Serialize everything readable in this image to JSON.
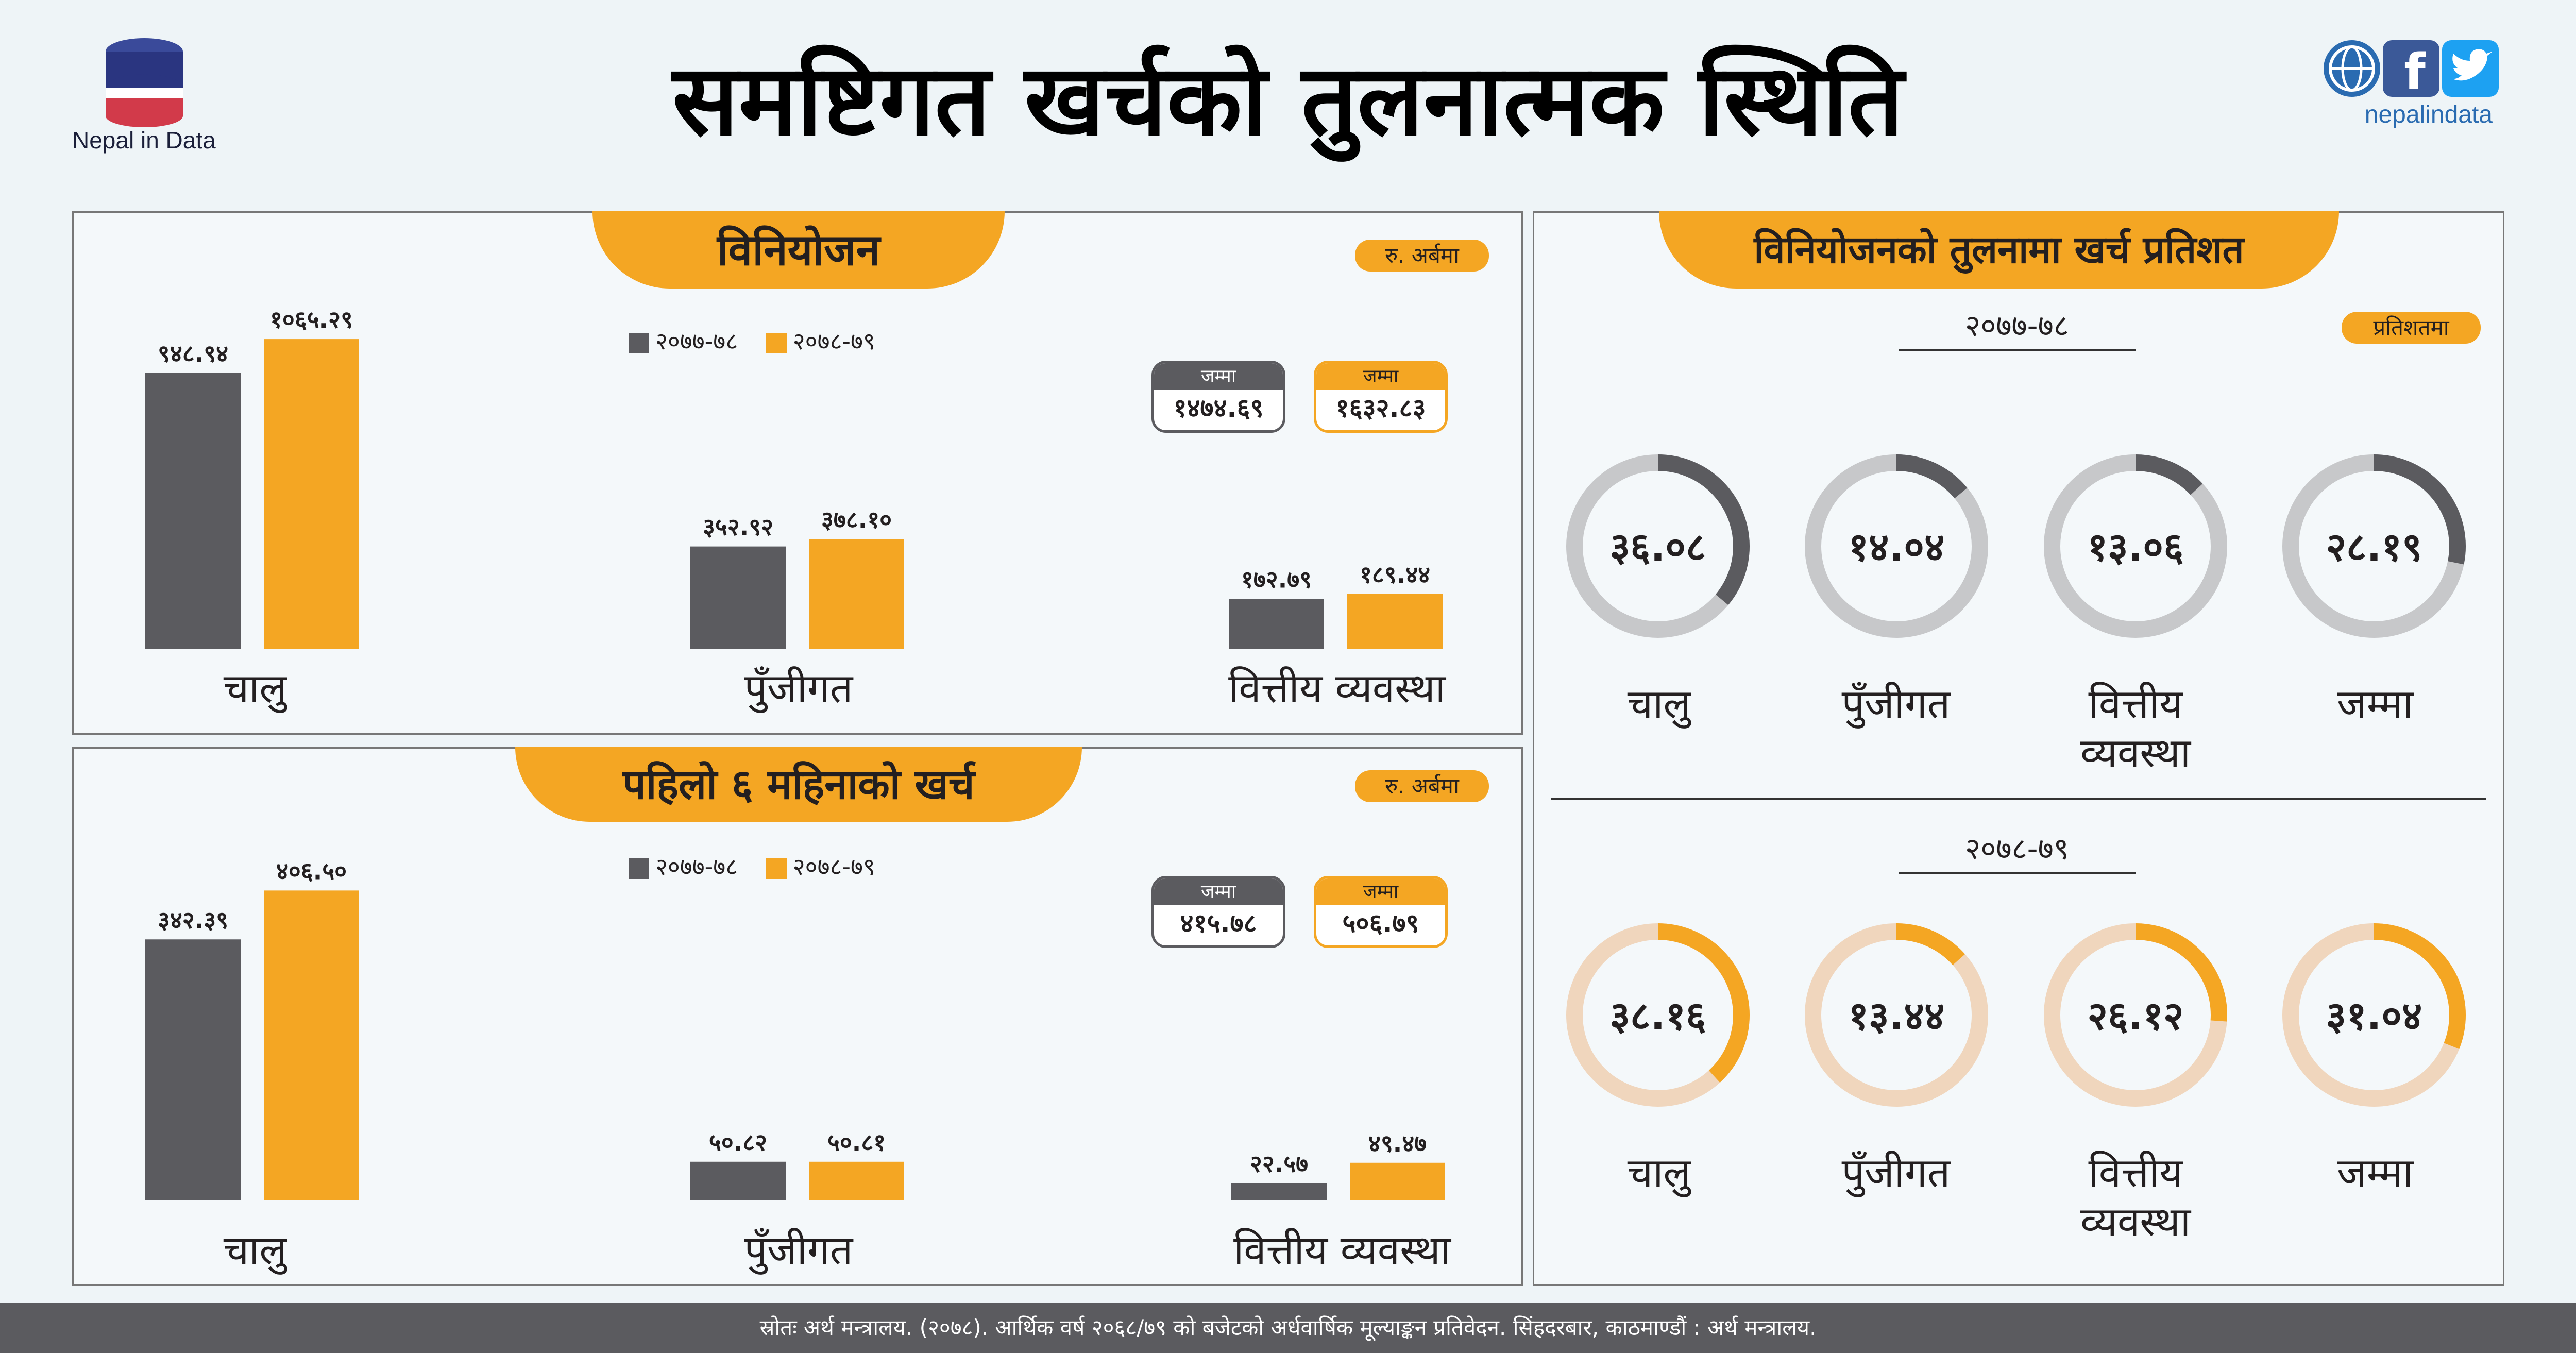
{
  "header": {
    "logo_text": "Nepal in Data",
    "title": "समष्टिगत खर्चको तुलनात्मक स्थिति",
    "site": "nepalindata"
  },
  "legend": {
    "prev": "२०७७-७८",
    "curr": "२०७८-७९"
  },
  "colors": {
    "prev": "#5b5b5f",
    "curr": "#f4a623",
    "ring_prev_track": "#c7c8ca",
    "ring_curr_track": "#f0d6bd"
  },
  "panel_alloc": {
    "title": "विनियोजन",
    "unit": "रु. अर्बमा",
    "total_label": "जम्मा",
    "total_prev": "१४७४.६९",
    "total_curr": "१६३२.८३",
    "categories": [
      "चालु",
      "पुँजीगत",
      "वित्तीय व्यवस्था"
    ]
  },
  "panel_spend": {
    "title": "पहिलो ६ महिनाको खर्च",
    "unit": "रु. अर्बमा",
    "total_label": "जम्मा",
    "total_prev": "४१५.७८",
    "total_curr": "५०६.७९",
    "categories": [
      "चालु",
      "पुँजीगत",
      "वित्तीय व्यवस्था"
    ]
  },
  "panel_pct": {
    "title": "विनियोजनको तुलनामा खर्च प्रतिशत",
    "unit": "प्रतिशतमा",
    "year_prev": "२०७७-७८",
    "year_curr": "२०७८-७९",
    "labels": [
      "चालु",
      "पुँजीगत",
      "वित्तीय व्यवस्था",
      "जम्मा"
    ]
  },
  "chart_data": [
    {
      "type": "bar",
      "title": "विनियोजन",
      "categories": [
        "चालु",
        "पुँजीगत",
        "वित्तीय व्यवस्था"
      ],
      "series": [
        {
          "name": "२०७७-७८",
          "values": [
            948.94,
            352.92,
            172.79
          ],
          "labels": [
            "९४८.९४",
            "३५२.९२",
            "१७२.७९"
          ]
        },
        {
          "name": "२०७८-७९",
          "values": [
            1065.29,
            378.1,
            189.44
          ],
          "labels": [
            "१०६५.२९",
            "३७८.१०",
            "१८९.४४"
          ]
        }
      ]
    },
    {
      "type": "bar",
      "title": "पहिलो ६ महिनाको खर्च",
      "categories": [
        "चालु",
        "पुँजीगत",
        "वित्तीय व्यवस्था"
      ],
      "series": [
        {
          "name": "२०७७-७८",
          "values": [
            342.39,
            50.82,
            22.57
          ],
          "labels": [
            "३४२.३९",
            "५०.८२",
            "२२.५७"
          ]
        },
        {
          "name": "२०७८-७९",
          "values": [
            406.5,
            50.81,
            49.47
          ],
          "labels": [
            "४०६.५०",
            "५०.८१",
            "४९.४७"
          ]
        }
      ]
    },
    {
      "type": "pie",
      "title": "विनियोजनको तुलनामा खर्च प्रतिशत",
      "categories": [
        "चालु",
        "पुँजीगत",
        "वित्तीय व्यवस्था",
        "जम्मा"
      ],
      "series": [
        {
          "name": "२०७७-७८",
          "values": [
            36.08,
            14.04,
            13.06,
            28.19
          ],
          "labels": [
            "३६.०८",
            "१४.०४",
            "१३.०६",
            "२८.१९"
          ]
        },
        {
          "name": "२०७८-७९",
          "values": [
            38.16,
            13.44,
            26.12,
            31.04
          ],
          "labels": [
            "३८.१६",
            "१३.४४",
            "२६.१२",
            "३१.०४"
          ]
        }
      ]
    }
  ],
  "footer": {
    "source": "स्रोतः अर्थ मन्त्रालय. (२०७८). आर्थिक वर्ष २०६८/७९ को बजेटको अर्धवार्षिक मूल्याङ्कन प्रतिवेदन. सिंहदरबार, काठमाण्डौं : अर्थ मन्त्रालय."
  }
}
